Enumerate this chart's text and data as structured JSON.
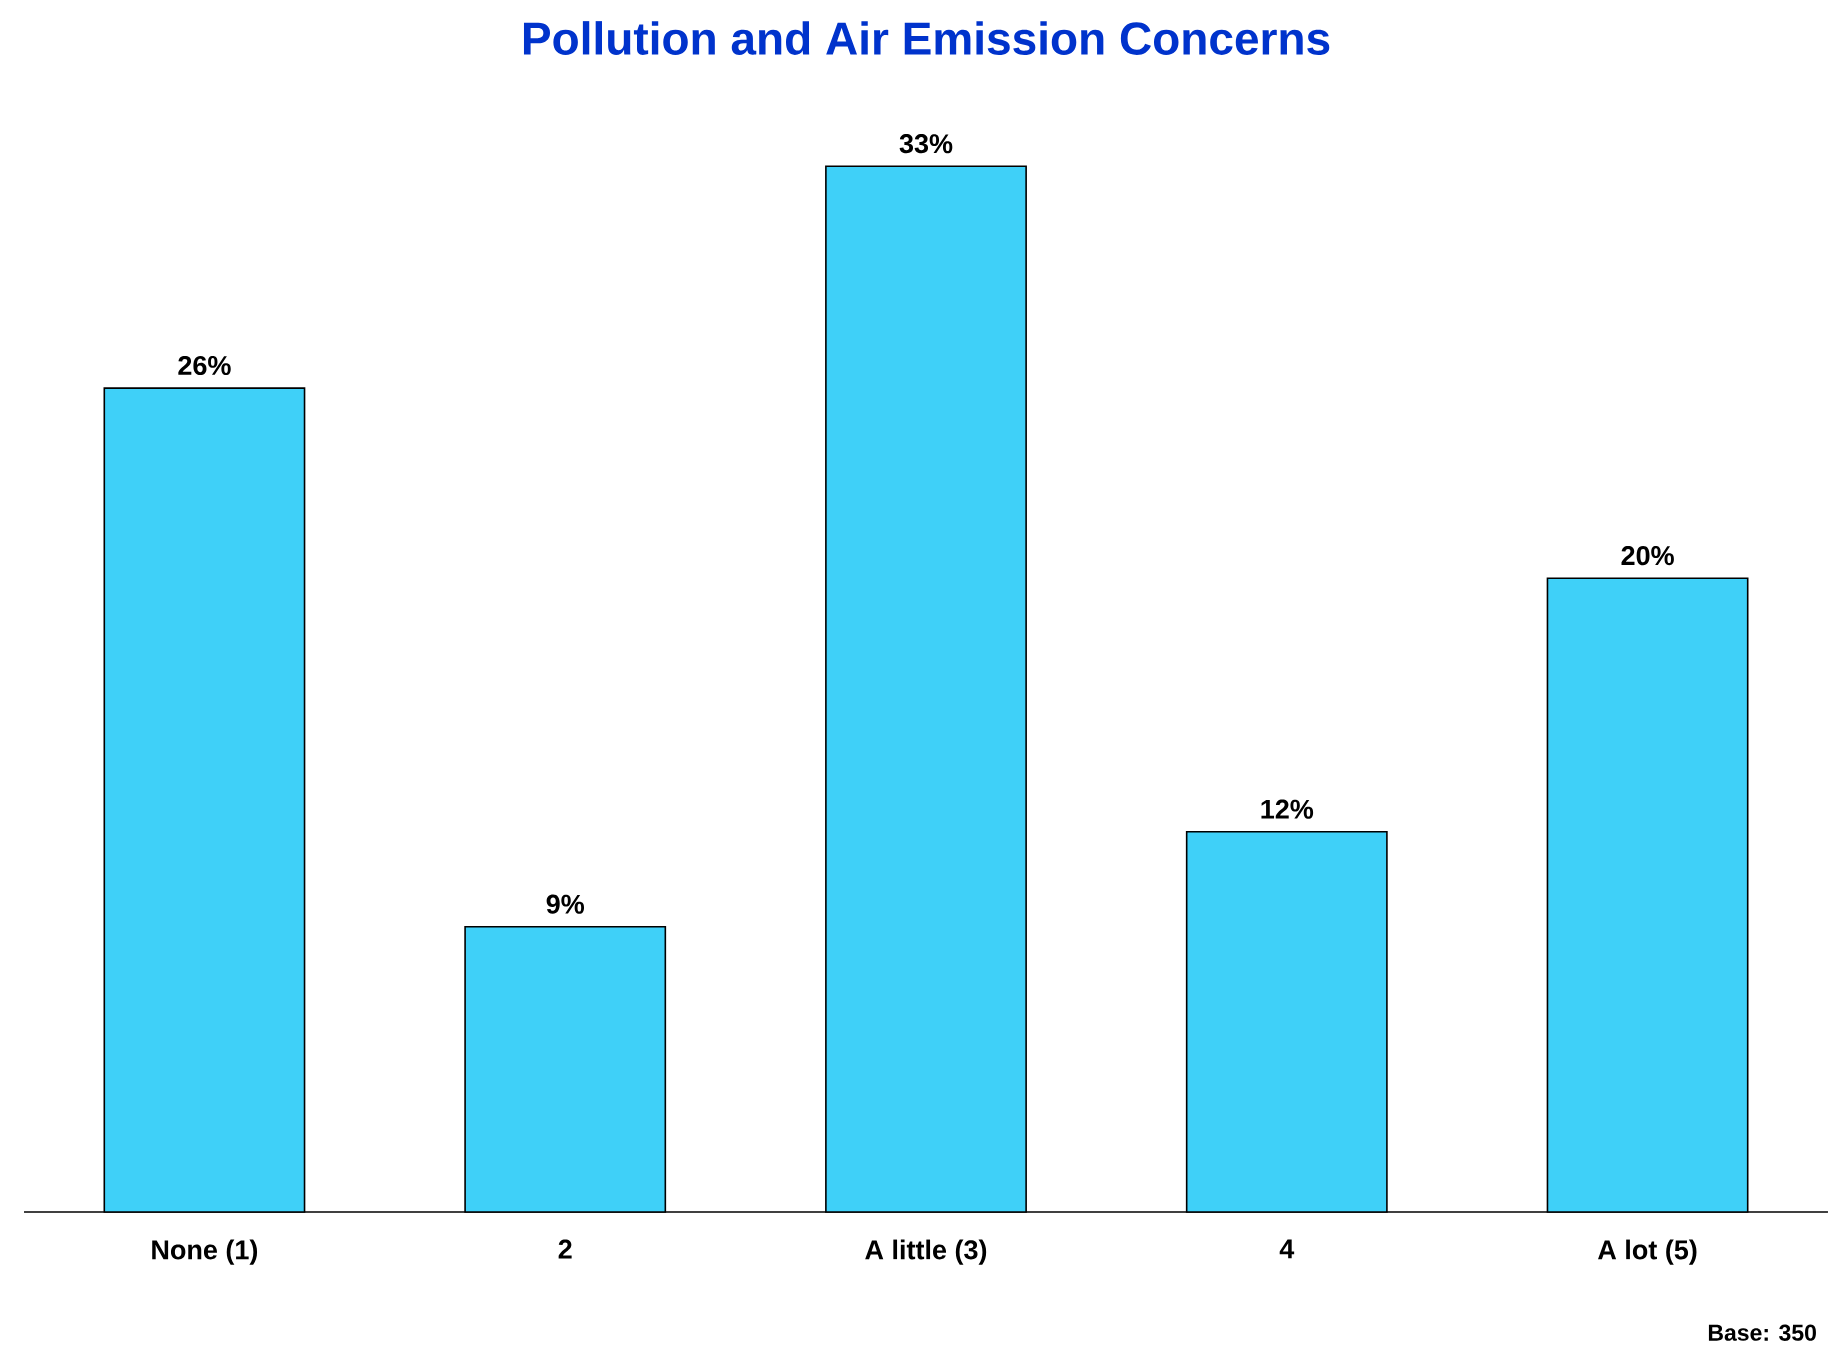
{
  "chart_data": {
    "type": "bar",
    "title": "Pollution and Air Emission Concerns",
    "categories": [
      "None (1)",
      "2",
      "A little (3)",
      "4",
      "A lot (5)"
    ],
    "values": [
      26,
      9,
      33,
      12,
      20
    ],
    "value_labels": [
      "26%",
      "9%",
      "33%",
      "12%",
      "20%"
    ],
    "color": "#3fd0f8",
    "annotations": [
      "Base: 350"
    ]
  }
}
